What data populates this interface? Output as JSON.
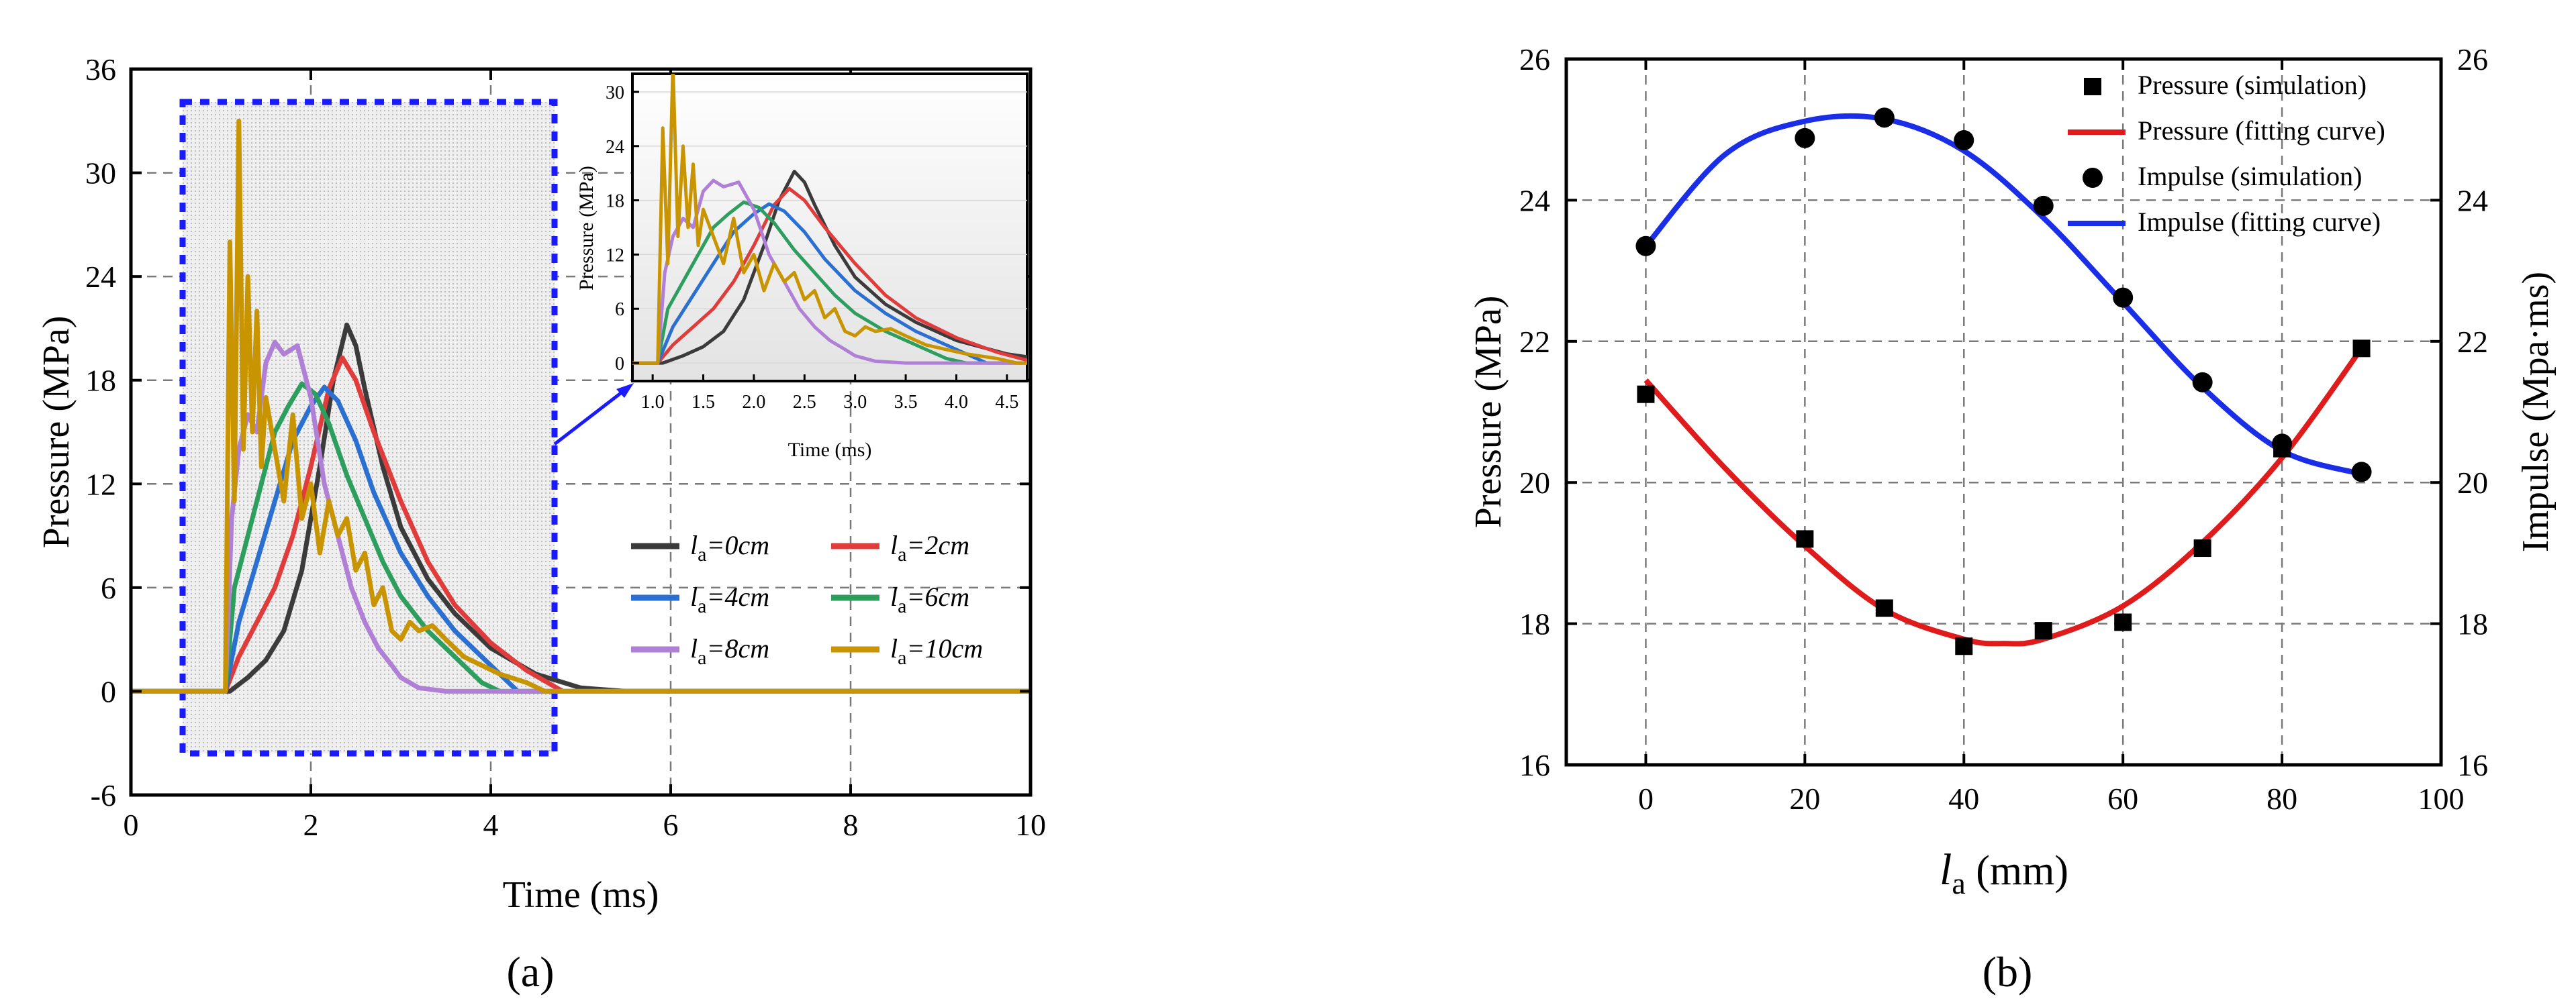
{
  "chart_data": [
    {
      "id": "a",
      "type": "line",
      "panel_label": "(a)",
      "xlabel": "Time (ms)",
      "ylabel": "Pressure (MPa)",
      "xlim": [
        0,
        10
      ],
      "ylim": [
        -6,
        36
      ],
      "xticks": [
        "0",
        "2",
        "4",
        "6",
        "8",
        "10"
      ],
      "yticks": [
        "-6",
        "0",
        "6",
        "12",
        "18",
        "24",
        "30",
        "36"
      ],
      "grid": true,
      "legend_position": "center-right",
      "series": [
        {
          "name": "la=0cm",
          "label_main": "l",
          "label_sub": "a",
          "label_rest": "=0cm",
          "color": "#3b3b3b",
          "x": [
            0,
            1.1,
            1.3,
            1.5,
            1.7,
            1.9,
            2.1,
            2.25,
            2.4,
            2.5,
            2.6,
            2.8,
            3.0,
            3.3,
            3.6,
            4.0,
            4.5,
            5.0,
            5.5,
            6,
            7,
            8,
            10
          ],
          "y": [
            0,
            0,
            0.8,
            1.8,
            3.5,
            7.0,
            13.0,
            18.0,
            21.2,
            20.0,
            17.5,
            13.0,
            9.5,
            6.5,
            4.5,
            2.5,
            1.0,
            0.2,
            0,
            0,
            0,
            0,
            0
          ]
        },
        {
          "name": "la=2cm",
          "label_main": "l",
          "label_sub": "a",
          "label_rest": "=2cm",
          "color": "#e03c3c",
          "x": [
            0,
            1.05,
            1.2,
            1.4,
            1.6,
            1.8,
            2.0,
            2.2,
            2.35,
            2.5,
            2.7,
            3.0,
            3.3,
            3.6,
            4.0,
            4.4,
            4.8,
            10
          ],
          "y": [
            0,
            0,
            2.0,
            4.0,
            6.0,
            9.0,
            13.0,
            17.5,
            19.3,
            18.0,
            15.0,
            11.0,
            7.5,
            5.0,
            2.8,
            1.2,
            0,
            0
          ]
        },
        {
          "name": "la=4cm",
          "label_main": "l",
          "label_sub": "a",
          "label_rest": "=4cm",
          "color": "#2b6fd0",
          "x": [
            0,
            1.05,
            1.2,
            1.4,
            1.6,
            1.8,
            2.0,
            2.15,
            2.3,
            2.5,
            2.7,
            3.0,
            3.3,
            3.6,
            4.0,
            4.3,
            10
          ],
          "y": [
            0,
            0,
            4.0,
            7.5,
            11.0,
            14.5,
            16.5,
            17.6,
            16.8,
            14.5,
            11.5,
            8.0,
            5.5,
            3.5,
            1.5,
            0,
            0
          ]
        },
        {
          "name": "la=6cm",
          "label_main": "l",
          "label_sub": "a",
          "label_rest": "=6cm",
          "color": "#2e9e5e",
          "x": [
            0,
            1.05,
            1.15,
            1.3,
            1.45,
            1.6,
            1.75,
            1.9,
            2.05,
            2.2,
            2.4,
            2.6,
            2.8,
            3.0,
            3.3,
            3.6,
            3.9,
            4.1,
            10
          ],
          "y": [
            0,
            0,
            6.0,
            9.0,
            12.0,
            15.0,
            16.5,
            17.8,
            17.2,
            15.5,
            12.5,
            10.0,
            7.5,
            5.5,
            3.5,
            2.0,
            0.5,
            0,
            0
          ]
        },
        {
          "name": "la=8cm",
          "label_main": "l",
          "label_sub": "a",
          "label_rest": "=8cm",
          "color": "#b07fd6",
          "x": [
            0,
            1.05,
            1.12,
            1.2,
            1.3,
            1.4,
            1.5,
            1.6,
            1.7,
            1.85,
            2.0,
            2.15,
            2.3,
            2.45,
            2.6,
            2.75,
            2.9,
            3.0,
            3.2,
            3.5,
            10
          ],
          "y": [
            0,
            0,
            10.0,
            14.0,
            16.0,
            15.0,
            19.0,
            20.2,
            19.5,
            20.0,
            17.0,
            12.0,
            9.0,
            6.0,
            4.0,
            2.5,
            1.5,
            0.8,
            0.2,
            0,
            0
          ]
        },
        {
          "name": "la=10cm",
          "label_main": "l",
          "label_sub": "a",
          "label_rest": "=10cm",
          "color": "#c89400",
          "x": [
            0,
            1.05,
            1.1,
            1.15,
            1.2,
            1.25,
            1.3,
            1.35,
            1.4,
            1.45,
            1.5,
            1.6,
            1.7,
            1.8,
            1.9,
            2.0,
            2.1,
            2.2,
            2.3,
            2.4,
            2.5,
            2.6,
            2.7,
            2.8,
            2.9,
            3.0,
            3.1,
            3.2,
            3.35,
            3.5,
            3.7,
            3.9,
            4.1,
            4.4,
            4.6,
            10
          ],
          "y": [
            0,
            0,
            26.0,
            11.0,
            33.0,
            14.0,
            24.0,
            15.0,
            22.0,
            13.0,
            17.0,
            14.0,
            11.0,
            16.0,
            10.0,
            12.0,
            8.0,
            11.0,
            9.0,
            10.0,
            7.0,
            8.0,
            5.0,
            6.0,
            3.5,
            3.0,
            4.0,
            3.5,
            3.8,
            3.0,
            2.0,
            1.5,
            1.0,
            0.5,
            0,
            0
          ]
        }
      ],
      "inset": {
        "xlabel": "Time (ms)",
        "ylabel": "Pressure (MPa)",
        "xlim": [
          0.8,
          4.7
        ],
        "ylim": [
          -2,
          32
        ],
        "xticks": [
          "1.0",
          "1.5",
          "2.0",
          "2.5",
          "3.0",
          "3.5",
          "4.0",
          "4.5"
        ],
        "yticks": [
          "0",
          "6",
          "12",
          "18",
          "24",
          "30"
        ]
      }
    },
    {
      "id": "b",
      "type": "scatter+line",
      "panel_label": "(b)",
      "xlabel_main": "l",
      "xlabel_sub": "a",
      "xlabel_rest": " (mm)",
      "ylabel": "Pressure (MPa)",
      "y2label": "Impulse (Mpa·ms)",
      "xlim": [
        -10,
        100
      ],
      "ylim": [
        16,
        26
      ],
      "y2lim": [
        16,
        26
      ],
      "xticks": [
        "0",
        "20",
        "40",
        "60",
        "80",
        "100"
      ],
      "yticks": [
        "16",
        "18",
        "20",
        "22",
        "24",
        "26"
      ],
      "y2ticks": [
        "16",
        "18",
        "20",
        "22",
        "24",
        "26"
      ],
      "grid": true,
      "legend_position": "top-right",
      "legend": [
        {
          "label": "Pressure (simulation)",
          "marker": "square",
          "color": "#000000"
        },
        {
          "label": "Pressure (fitting curve)",
          "marker": "line",
          "color": "#e01b1b"
        },
        {
          "label": "Impulse (simulation)",
          "marker": "circle",
          "color": "#000000"
        },
        {
          "label": "Impulse (fitting curve)",
          "marker": "line",
          "color": "#1a2ee8"
        }
      ],
      "pressure_simulation": {
        "x": [
          0,
          20,
          30,
          40,
          50,
          60,
          70,
          80,
          90
        ],
        "y": [
          21.25,
          19.2,
          18.22,
          17.68,
          17.9,
          18.02,
          19.07,
          20.48,
          21.9
        ]
      },
      "pressure_fit": {
        "x": [
          0,
          10,
          20,
          30,
          40,
          45,
          50,
          60,
          70,
          80,
          90
        ],
        "y": [
          21.45,
          20.2,
          19.1,
          18.2,
          17.78,
          17.72,
          17.78,
          18.25,
          19.15,
          20.35,
          21.9
        ]
      },
      "impulse_simulation": {
        "x": [
          0,
          20,
          30,
          40,
          50,
          60,
          70,
          80,
          90
        ],
        "y": [
          23.35,
          24.88,
          25.17,
          24.85,
          23.92,
          22.62,
          21.42,
          20.55,
          20.15
        ]
      },
      "impulse_fit": {
        "x": [
          0,
          10,
          20,
          30,
          40,
          50,
          60,
          70,
          80,
          90
        ],
        "y": [
          23.35,
          24.65,
          25.12,
          25.15,
          24.7,
          23.75,
          22.55,
          21.35,
          20.45,
          20.12
        ]
      }
    }
  ]
}
